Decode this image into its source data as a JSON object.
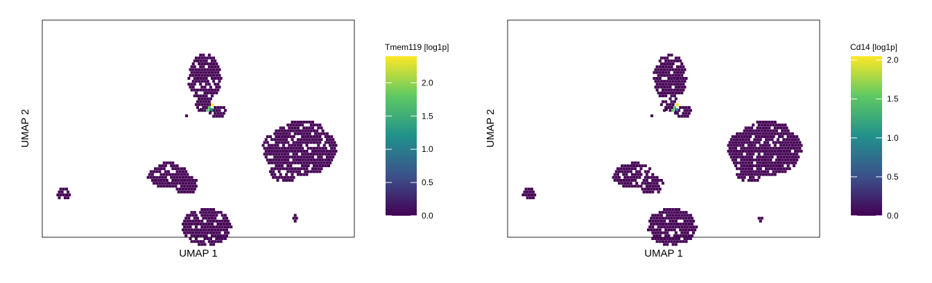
{
  "chart_data": [
    {
      "type": "scatter",
      "subtype": "hexbin-embedding",
      "xlabel": "UMAP 1",
      "ylabel": "UMAP 2",
      "colorbar": {
        "title": "Tmem119 [log1p]",
        "range": [
          0,
          2.4
        ],
        "ticks": [
          0.0,
          0.5,
          1.0,
          1.5,
          2.0
        ],
        "tick_labels": [
          "0.0",
          "0.5",
          "1.0",
          "1.5",
          "2.0"
        ],
        "colormap": "viridis"
      },
      "grid": false,
      "highlight_value": 2.4
    },
    {
      "type": "scatter",
      "subtype": "hexbin-embedding",
      "xlabel": "UMAP 1",
      "ylabel": "UMAP 2",
      "colorbar": {
        "title": "Cd14 [log1p]",
        "range": [
          0,
          2.05
        ],
        "ticks": [
          0.0,
          0.5,
          1.0,
          1.5,
          2.0
        ],
        "tick_labels": [
          "0.0",
          "0.5",
          "1.0",
          "1.5",
          "2.0"
        ],
        "colormap": "viridis"
      },
      "grid": false,
      "highlight_value": 2.0
    }
  ],
  "colors": {
    "base_cell": "#440154",
    "viridis": [
      "#440154",
      "#3b528b",
      "#21918c",
      "#5ec962",
      "#fde725"
    ]
  }
}
